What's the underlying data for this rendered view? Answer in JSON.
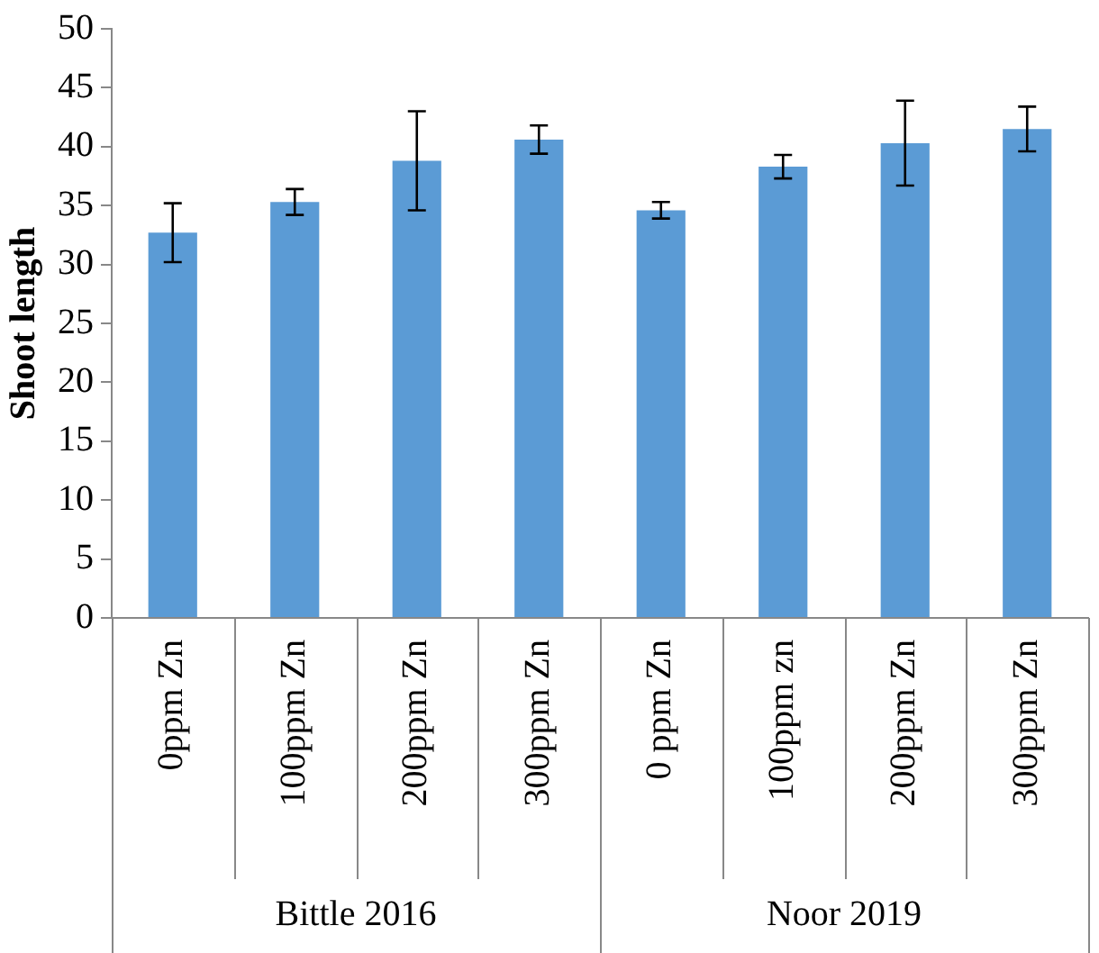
{
  "chart_data": {
    "type": "bar",
    "ylabel": "Shoot length",
    "categories": [
      "0ppm Zn",
      "100ppm Zn",
      "200ppm Zn",
      "300ppm Zn",
      "0 ppm Zn",
      "100ppm zn",
      "200ppm Zn",
      "300ppm Zn"
    ],
    "values": [
      32.7,
      35.3,
      38.8,
      40.6,
      34.6,
      38.3,
      40.3,
      41.5
    ],
    "errors": [
      2.5,
      1.1,
      4.2,
      1.2,
      0.7,
      1.0,
      3.6,
      1.9
    ],
    "color": "#5b9bd5",
    "ylim": [
      0,
      50
    ],
    "yticks": [
      0,
      5,
      10,
      15,
      20,
      25,
      30,
      35,
      40,
      45,
      50
    ],
    "annotations": [
      "Bittle 2016",
      "Noor 2019"
    ]
  }
}
